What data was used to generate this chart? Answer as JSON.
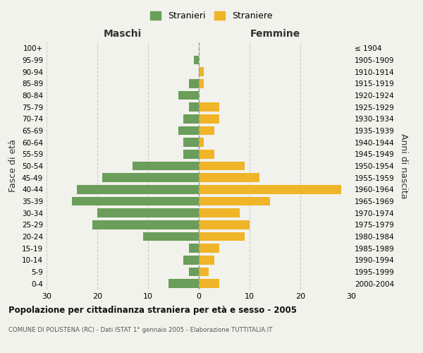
{
  "age_groups": [
    "0-4",
    "5-9",
    "10-14",
    "15-19",
    "20-24",
    "25-29",
    "30-34",
    "35-39",
    "40-44",
    "45-49",
    "50-54",
    "55-59",
    "60-64",
    "65-69",
    "70-74",
    "75-79",
    "80-84",
    "85-89",
    "90-94",
    "95-99",
    "100+"
  ],
  "birth_years": [
    "2000-2004",
    "1995-1999",
    "1990-1994",
    "1985-1989",
    "1980-1984",
    "1975-1979",
    "1970-1974",
    "1965-1969",
    "1960-1964",
    "1955-1959",
    "1950-1954",
    "1945-1949",
    "1940-1944",
    "1935-1939",
    "1930-1934",
    "1925-1929",
    "1920-1924",
    "1915-1919",
    "1910-1914",
    "1905-1909",
    "≤ 1904"
  ],
  "maschi": [
    6,
    2,
    3,
    2,
    11,
    21,
    20,
    25,
    24,
    19,
    13,
    3,
    3,
    4,
    3,
    2,
    4,
    2,
    0,
    1,
    0
  ],
  "femmine": [
    4,
    2,
    3,
    4,
    9,
    10,
    8,
    14,
    28,
    12,
    9,
    3,
    1,
    3,
    4,
    4,
    0,
    1,
    1,
    0,
    0
  ],
  "maschi_color": "#6a9e5a",
  "femmine_color": "#f0b429",
  "background_color": "#f2f2ec",
  "grid_color": "#cccccc",
  "xlim": 30,
  "title": "Popolazione per cittadinanza straniera per età e sesso - 2005",
  "subtitle": "COMUNE DI POLISTENA (RC) - Dati ISTAT 1° gennaio 2005 - Elaborazione TUTTITALIA.IT",
  "xlabel_left": "Maschi",
  "xlabel_right": "Femmine",
  "ylabel_left": "Fasce di età",
  "ylabel_right": "Anni di nascita",
  "legend_stranieri": "Stranieri",
  "legend_straniere": "Straniere"
}
